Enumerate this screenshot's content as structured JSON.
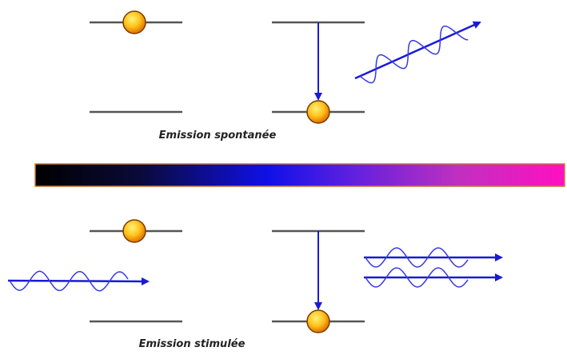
{
  "labels": {
    "spontaneous": "Emission spontanée",
    "stimulated": "Emission stimulée"
  }
}
